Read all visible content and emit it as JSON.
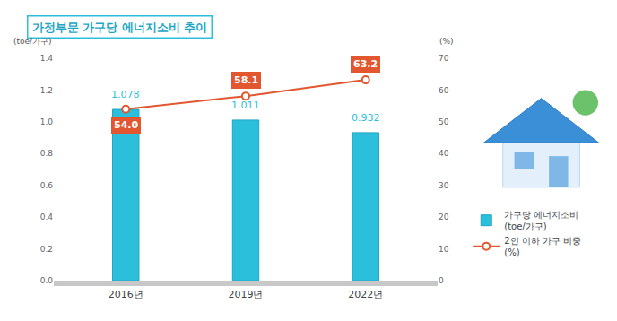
{
  "chart_data": {
    "type": "bar",
    "title": "가정부문 가구당 에너지소비 추이",
    "categories": [
      "2016년",
      "2019년",
      "2022년"
    ],
    "ylabel": "(toe/가구)",
    "y2label": "(%)",
    "series": [
      {
        "name": "가구당 에너지소비 (toe/가구)",
        "type": "bar",
        "color": "#2bbfdc",
        "values": [
          1.078,
          1.011,
          0.932
        ]
      },
      {
        "name": "2인 이하 가구 비중 (%)",
        "type": "line",
        "axis": "y2",
        "color": "#e2572f",
        "marker": "circle",
        "values": [
          54.0,
          58.1,
          63.2
        ],
        "value_labels": [
          "54.0",
          "58.1",
          "63.2"
        ]
      }
    ],
    "ylim": [
      0,
      1.4
    ],
    "yticks": [
      {
        "value": 0,
        "label": "0.0"
      },
      {
        "value": 0.2,
        "label": "0.2"
      },
      {
        "value": 0.4,
        "label": "0.4"
      },
      {
        "value": 0.6,
        "label": "0.6"
      },
      {
        "value": 0.8,
        "label": "0.8"
      },
      {
        "value": 1,
        "label": "1.0"
      },
      {
        "value": 1.2,
        "label": "1.2"
      },
      {
        "value": 1.4,
        "label": "1.4"
      }
    ],
    "y2lim": [
      0,
      70
    ],
    "y2ticks": [
      0,
      10,
      20,
      30,
      40,
      50,
      60,
      70
    ],
    "grid": false,
    "legend": "right",
    "data_labels": true
  }
}
